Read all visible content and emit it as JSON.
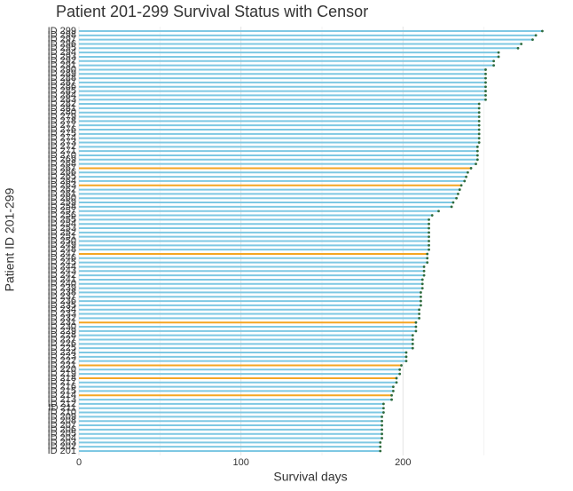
{
  "chart_data": {
    "type": "lollipop",
    "title": "Patient 201-299 Survival Status with Censor",
    "xlabel": "Survival days",
    "ylabel": "Patient ID 201-299",
    "categories": [
      "ID 201",
      "ID 202",
      "ID 203",
      "ID 204",
      "ID 205",
      "ID 206",
      "ID 207",
      "ID 208",
      "ID 209",
      "ID 210",
      "ID 211",
      "ID 212",
      "ID 213",
      "ID 214",
      "ID 215",
      "ID 216",
      "ID 217",
      "ID 218",
      "ID 219",
      "ID 220",
      "ID 221",
      "ID 222",
      "ID 223",
      "ID 224",
      "ID 225",
      "ID 226",
      "ID 227",
      "ID 228",
      "ID 229",
      "ID 230",
      "ID 231",
      "ID 232",
      "ID 233",
      "ID 234",
      "ID 235",
      "ID 236",
      "ID 237",
      "ID 238",
      "ID 239",
      "ID 240",
      "ID 241",
      "ID 242",
      "ID 243",
      "ID 244",
      "ID 245",
      "ID 246",
      "ID 247",
      "ID 248",
      "ID 249",
      "ID 250",
      "ID 251",
      "ID 252",
      "ID 253",
      "ID 254",
      "ID 255",
      "ID 256",
      "ID 257",
      "ID 258",
      "ID 259",
      "ID 260",
      "ID 261",
      "ID 262",
      "ID 263",
      "ID 264",
      "ID 265",
      "ID 266",
      "ID 267",
      "ID 268",
      "ID 269",
      "ID 270",
      "ID 271",
      "ID 272",
      "ID 273",
      "ID 274",
      "ID 275",
      "ID 276",
      "ID 277",
      "ID 278",
      "ID 279",
      "ID 280",
      "ID 281",
      "ID 282",
      "ID 283",
      "ID 284",
      "ID 285",
      "ID 286",
      "ID 287",
      "ID 288",
      "ID 289",
      "ID 290",
      "ID 291",
      "ID 292",
      "ID 293",
      "ID 294",
      "ID 295",
      "ID 296",
      "ID 297",
      "ID 298",
      "ID 299"
    ],
    "values": [
      186,
      186,
      186,
      187,
      187,
      187,
      187,
      187,
      187,
      188,
      188,
      188,
      193,
      193,
      194,
      194,
      196,
      196,
      198,
      198,
      199,
      202,
      202,
      202,
      206,
      206,
      206,
      206,
      208,
      208,
      208,
      210,
      210,
      210,
      211,
      211,
      211,
      211,
      212,
      212,
      212,
      213,
      213,
      213,
      215,
      215,
      215,
      216,
      216,
      216,
      216,
      216,
      216,
      216,
      216,
      218,
      222,
      230,
      231,
      233,
      234,
      235,
      236,
      238,
      239,
      240,
      242,
      245,
      246,
      246,
      246,
      246,
      247,
      247,
      247,
      247,
      247,
      247,
      247,
      247,
      247,
      247,
      251,
      251,
      251,
      251,
      251,
      251,
      251,
      251,
      256,
      256,
      259,
      259,
      271,
      273,
      280,
      282,
      286
    ],
    "colors": [
      "#7ec8e3",
      "#7ec8e3",
      "#7ec8e3",
      "#7ec8e3",
      "#7ec8e3",
      "#7ec8e3",
      "#7ec8e3",
      "#7ec8e3",
      "#7ec8e3",
      "#7ec8e3",
      "#7ec8e3",
      "#7ec8e3",
      "#7ec8e3",
      "#f5a623",
      "#7ec8e3",
      "#7ec8e3",
      "#7ec8e3",
      "#f5a623",
      "#7ec8e3",
      "#7ec8e3",
      "#f5a623",
      "#7ec8e3",
      "#7ec8e3",
      "#7ec8e3",
      "#7ec8e3",
      "#7ec8e3",
      "#7ec8e3",
      "#7ec8e3",
      "#7ec8e3",
      "#7ec8e3",
      "#f5a623",
      "#7ec8e3",
      "#7ec8e3",
      "#7ec8e3",
      "#7ec8e3",
      "#7ec8e3",
      "#7ec8e3",
      "#7ec8e3",
      "#7ec8e3",
      "#7ec8e3",
      "#7ec8e3",
      "#7ec8e3",
      "#7ec8e3",
      "#7ec8e3",
      "#7ec8e3",
      "#7ec8e3",
      "#f5a623",
      "#7ec8e3",
      "#7ec8e3",
      "#7ec8e3",
      "#7ec8e3",
      "#7ec8e3",
      "#7ec8e3",
      "#7ec8e3",
      "#7ec8e3",
      "#7ec8e3",
      "#7ec8e3",
      "#7ec8e3",
      "#7ec8e3",
      "#7ec8e3",
      "#7ec8e3",
      "#7ec8e3",
      "#f5a623",
      "#7ec8e3",
      "#7ec8e3",
      "#7ec8e3",
      "#f5a623",
      "#7ec8e3",
      "#7ec8e3",
      "#7ec8e3",
      "#7ec8e3",
      "#7ec8e3",
      "#7ec8e3",
      "#7ec8e3",
      "#7ec8e3",
      "#7ec8e3",
      "#7ec8e3",
      "#7ec8e3",
      "#7ec8e3",
      "#7ec8e3",
      "#7ec8e3",
      "#7ec8e3",
      "#7ec8e3",
      "#7ec8e3",
      "#7ec8e3",
      "#7ec8e3",
      "#7ec8e3",
      "#7ec8e3",
      "#7ec8e3",
      "#7ec8e3",
      "#7ec8e3",
      "#7ec8e3",
      "#7ec8e3",
      "#7ec8e3",
      "#7ec8e3",
      "#7ec8e3",
      "#7ec8e3",
      "#7ec8e3",
      "#7ec8e3"
    ],
    "point_color": "#2e6b3e",
    "xlim": [
      0,
      300
    ],
    "xticks": [
      0,
      100,
      200
    ],
    "xminor": [
      50,
      150,
      250
    ],
    "grid": true
  }
}
